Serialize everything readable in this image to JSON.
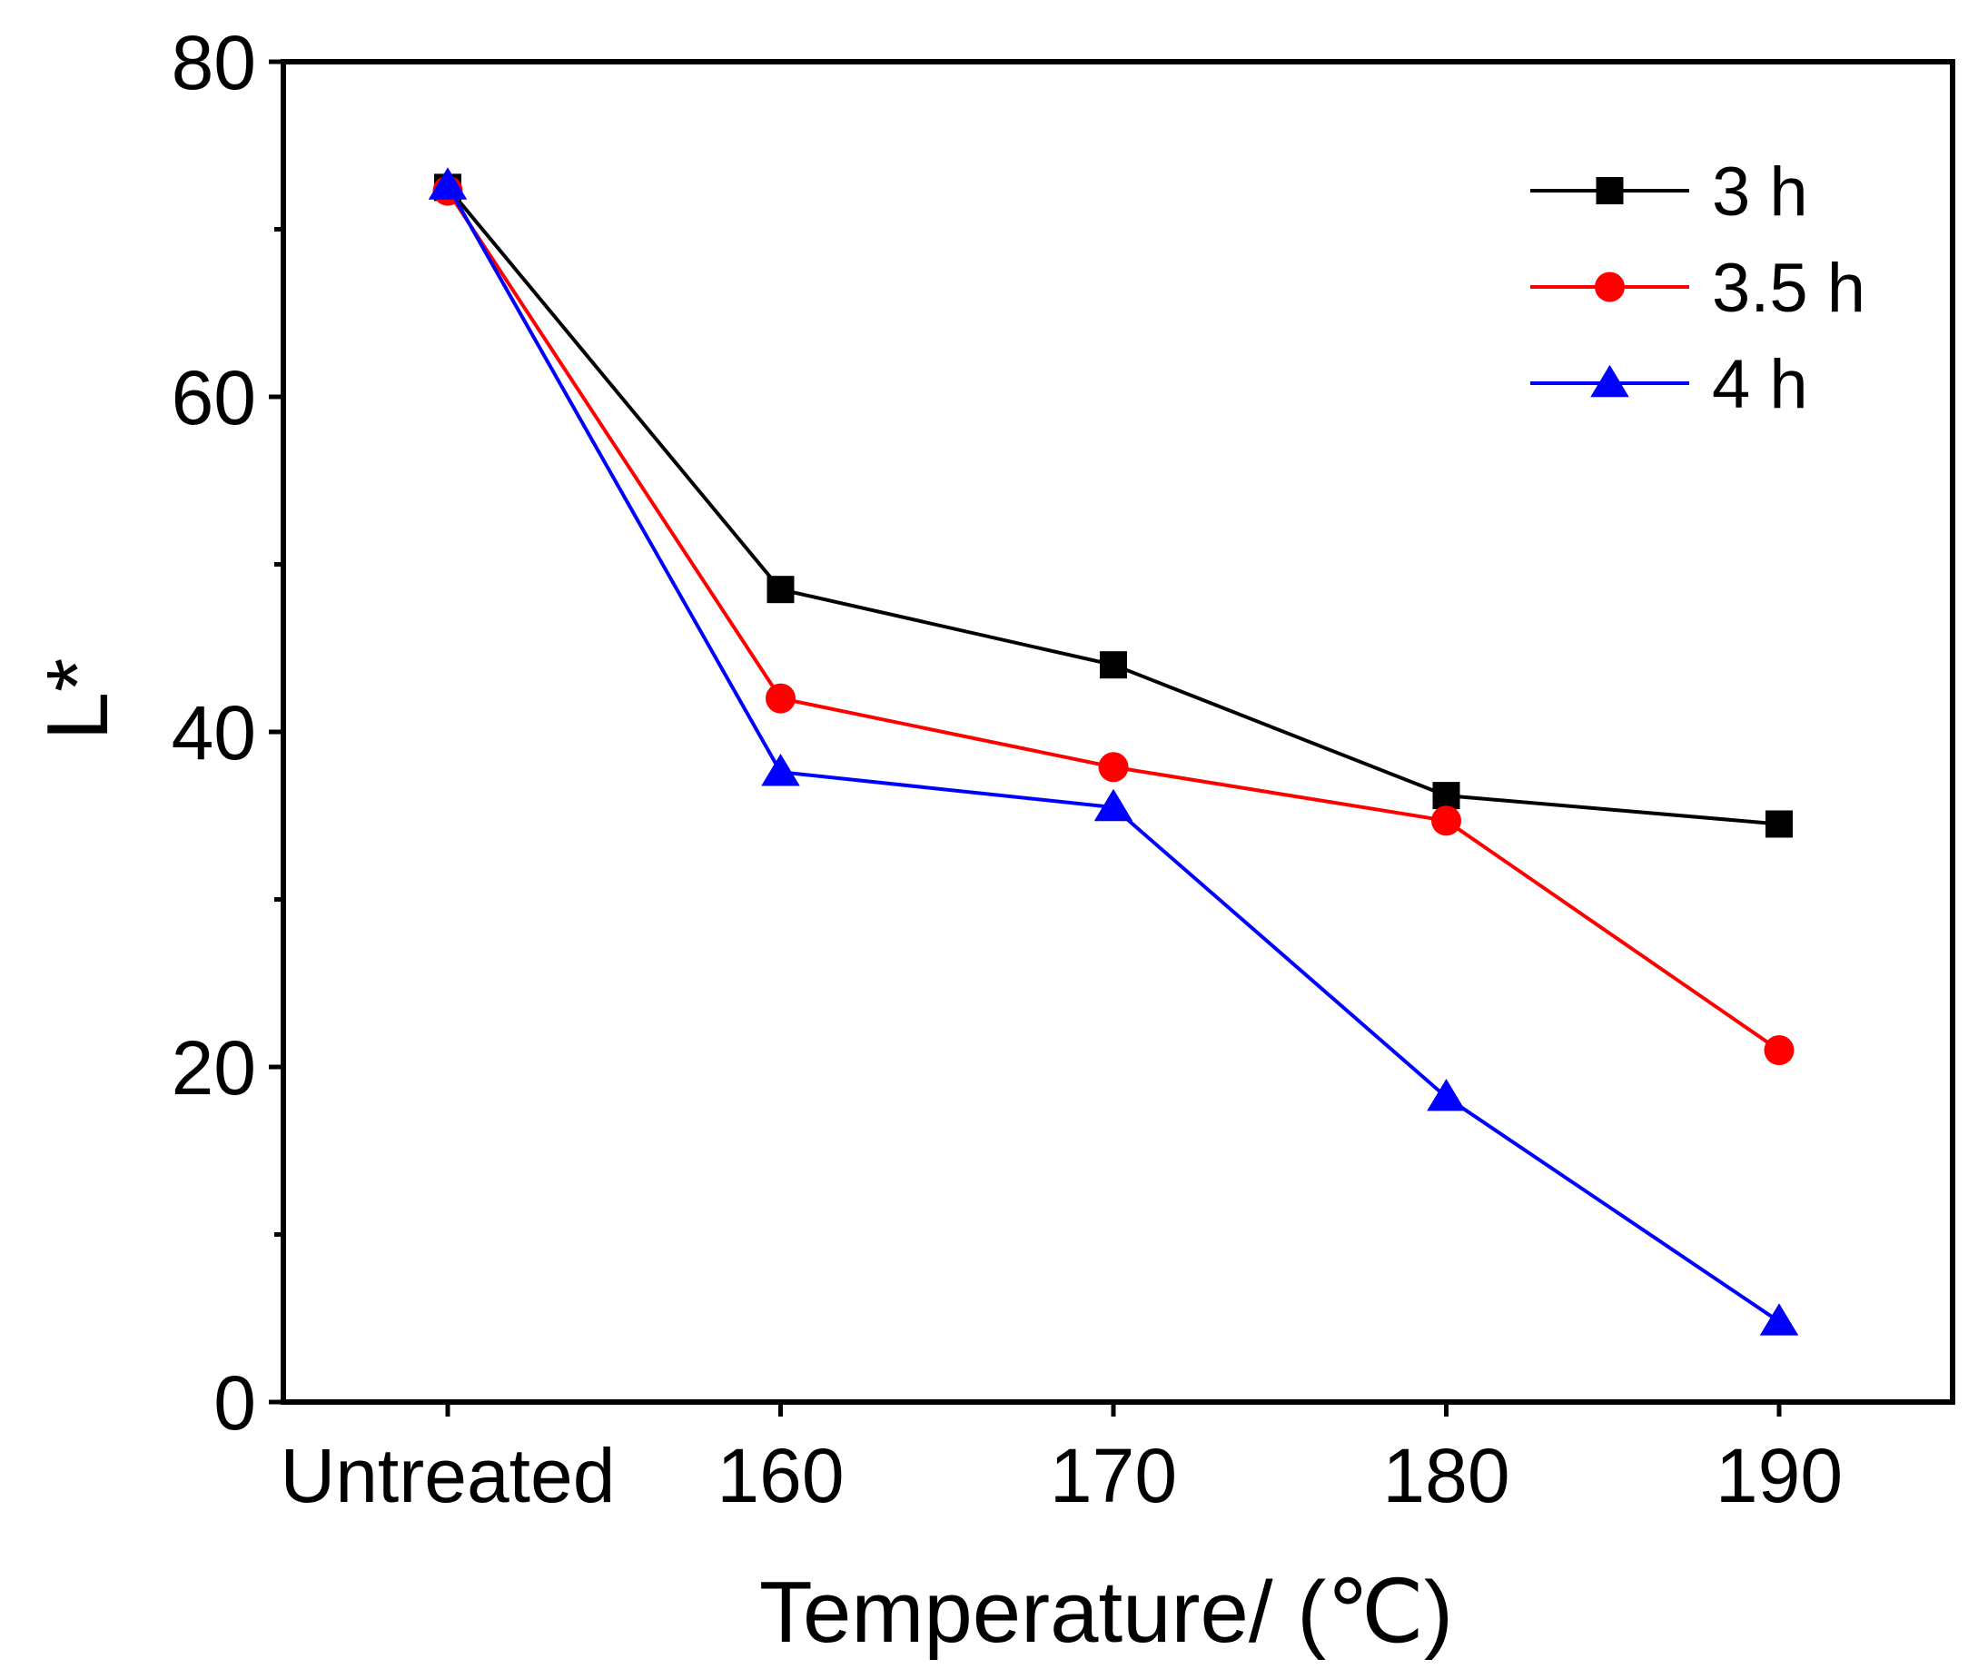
{
  "chart_data": {
    "type": "line",
    "categories": [
      "Untreated",
      "160",
      "170",
      "180",
      "190"
    ],
    "xlabel": "Temperature/ (℃)",
    "ylabel": "L*",
    "ylim": [
      0,
      80
    ],
    "yticks": [
      "0",
      "20",
      "40",
      "60",
      "80"
    ],
    "grid": false,
    "legend_position": "top-right",
    "series": [
      {
        "name": "3 h",
        "values": [
          72.5,
          48.5,
          44,
          36.2,
          34.5
        ],
        "color": "#000000",
        "marker": "square"
      },
      {
        "name": "3.5 h",
        "values": [
          72.3,
          42,
          37.9,
          34.7,
          21
        ],
        "color": "#ff0000",
        "marker": "circle"
      },
      {
        "name": "4 h",
        "values": [
          72.6,
          37.6,
          35.5,
          18.2,
          4.8
        ],
        "color": "#0000ff",
        "marker": "triangle"
      }
    ]
  }
}
